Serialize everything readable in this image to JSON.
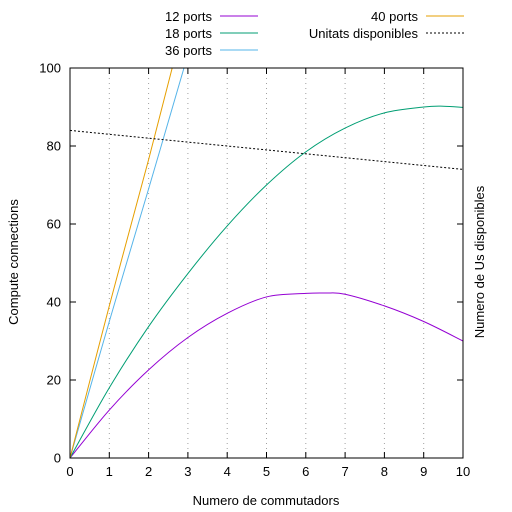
{
  "chart_data": {
    "type": "line",
    "title": "",
    "xlabel": "Numero de commutadors",
    "ylabel": "Compute connections",
    "y2label": "Numero de Us disponibles",
    "xlim": [
      0,
      10
    ],
    "ylim": [
      0,
      100
    ],
    "x_ticks": [
      0,
      1,
      2,
      3,
      4,
      5,
      6,
      7,
      8,
      9,
      10
    ],
    "y_ticks": [
      0,
      20,
      40,
      60,
      80,
      100
    ],
    "grid": "vertical dotted at x ticks",
    "legend_position": "top, outside plot",
    "series": [
      {
        "name": "12 ports",
        "color": "#9400d3",
        "style": "solid",
        "x": [
          0,
          1,
          2,
          3,
          4,
          5,
          6,
          6.5,
          7,
          8,
          9,
          10
        ],
        "y": [
          0,
          12.3,
          22.6,
          30.9,
          37.1,
          41.3,
          42.2,
          42.3,
          42.0,
          39.0,
          35.0,
          30.0
        ]
      },
      {
        "name": "18 ports",
        "color": "#009e73",
        "style": "solid",
        "x": [
          0,
          1,
          2,
          3,
          4,
          5,
          6,
          7,
          8,
          9,
          9.5,
          10
        ],
        "y": [
          0,
          18.0,
          33.7,
          47.3,
          59.5,
          70.0,
          78.5,
          84.6,
          88.5,
          90.0,
          90.2,
          89.9
        ]
      },
      {
        "name": "36 ports",
        "color": "#56b4e9",
        "style": "solid",
        "x": [
          0,
          1,
          2,
          2.9
        ],
        "y": [
          0,
          35.0,
          69.0,
          100
        ]
      },
      {
        "name": "40 ports",
        "color": "#e69f00",
        "style": "solid",
        "x": [
          0,
          1,
          2,
          2.6
        ],
        "y": [
          0,
          39.0,
          76.5,
          100
        ]
      },
      {
        "name": "Unitats disponibles",
        "color": "#000000",
        "style": "dotted",
        "x": [
          0,
          10
        ],
        "y": [
          84,
          74
        ]
      }
    ]
  }
}
